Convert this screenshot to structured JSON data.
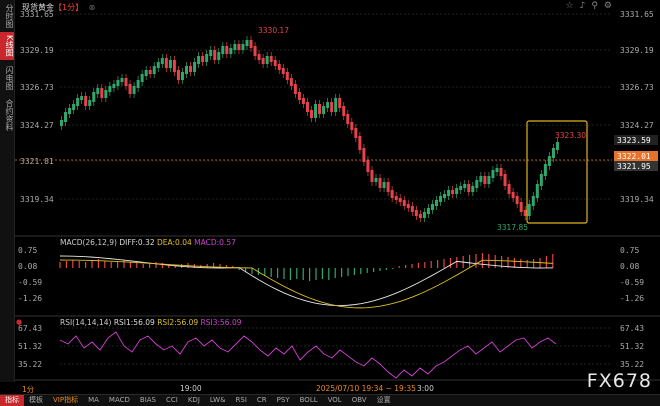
{
  "sidebar": {
    "items": [
      {
        "label": "分时图",
        "active": false
      },
      {
        "label": "K线图",
        "active": true
      },
      {
        "label": "闪电图",
        "active": false
      },
      {
        "label": "合约资料",
        "active": false
      }
    ]
  },
  "header": {
    "title": "现货黄金",
    "period": "【1分】",
    "icons": [
      "star-icon",
      "bell-icon",
      "search-icon",
      "settings-icon"
    ]
  },
  "main_chart": {
    "y_ticks": [
      "3331.65",
      "3329.19",
      "3326.73",
      "3324.27",
      "3321.81",
      "3319.34"
    ],
    "high_label": "3330.17",
    "low_label": "3317.85",
    "recent_high_label": "3323.30",
    "price_tag_1": "3323.59",
    "price_tag_2": "3322.01",
    "price_tag_3": "3321.95",
    "colors": {
      "up": "#2fa86e",
      "down": "#e8424b",
      "highlight": "#e0b022"
    }
  },
  "macd": {
    "title": "MACD(26,12,9)",
    "diff": "DIFF:0.32",
    "dea": "DEA:0.04",
    "macd": "MACD:0.57",
    "y_ticks": [
      "0.75",
      "0.08",
      "-0.59",
      "-1.26"
    ]
  },
  "rsi": {
    "title": "RSI(14,14,14)",
    "rsi1": "RSI1:56.09",
    "rsi2": "RSI2:56.09",
    "rsi3": "RSI3:56.09",
    "y_ticks": [
      "67.43",
      "51.32",
      "35.22"
    ]
  },
  "time_axis": {
    "period_tag": "1分",
    "label_1900": "19:00",
    "crosshair": "2025/07/10 19:34 ~ 19:35",
    "label_2000": "3:00"
  },
  "toolbar": {
    "items": [
      "指标",
      "模板",
      "VIP指标",
      "MA",
      "MACD",
      "BIAS",
      "CCI",
      "KDJ",
      "LW&",
      "RSI",
      "CR",
      "PSY",
      "BOLL",
      "VOL",
      "OBV",
      "设置"
    ]
  },
  "watermark": "FX678"
}
